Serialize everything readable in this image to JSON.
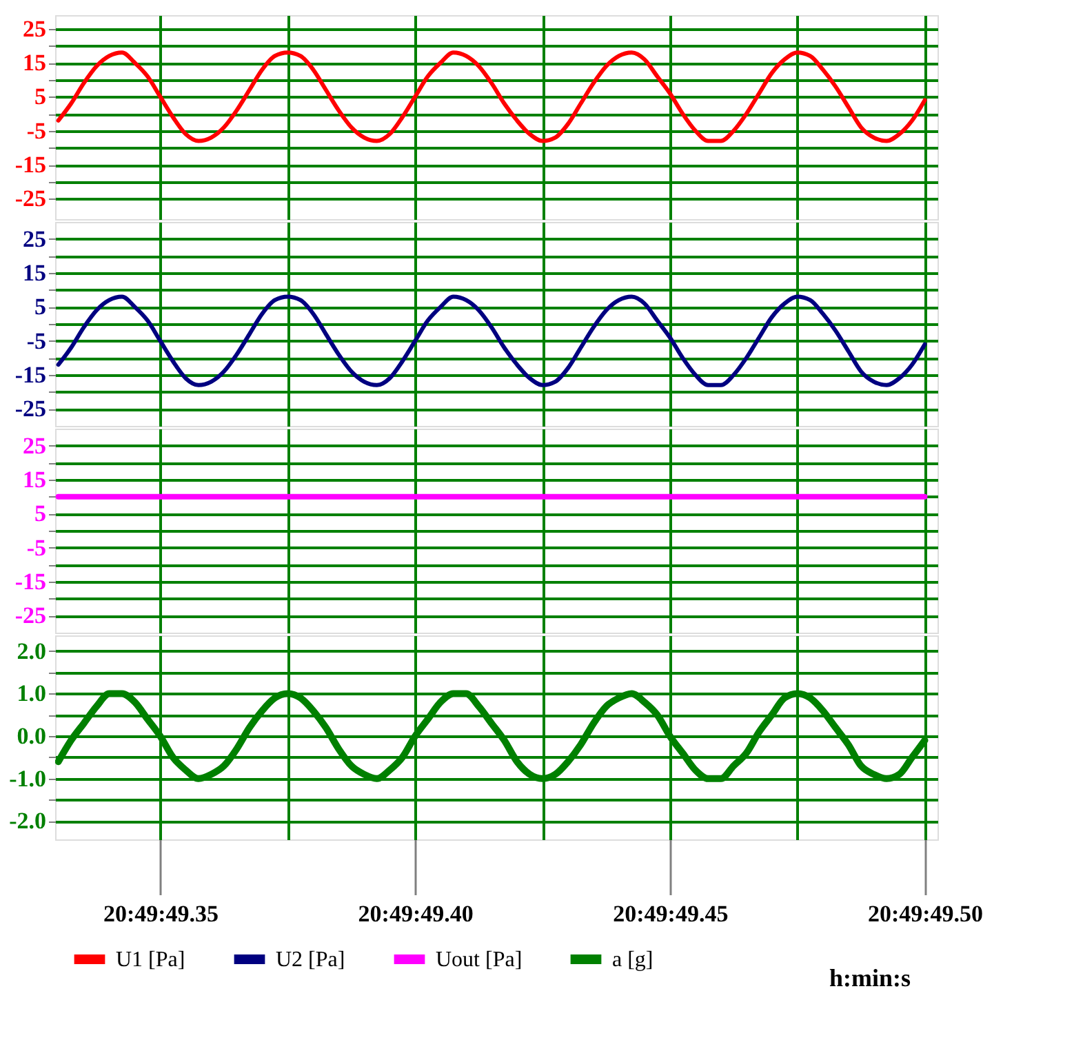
{
  "chart_data": [
    {
      "type": "line",
      "categories": [
        null,
        null,
        null,
        null,
        null,
        null,
        null,
        null,
        "20:49:49.35",
        null,
        null,
        null,
        null,
        null,
        null,
        null,
        null,
        null,
        null,
        null,
        null,
        null,
        null,
        null,
        null,
        null,
        null,
        null,
        "20:49:49.40",
        null,
        null,
        null,
        null,
        null,
        null,
        null,
        null,
        null,
        null,
        null,
        null,
        null,
        null,
        null,
        null,
        null,
        null,
        null,
        "20:49:49.45",
        null,
        null,
        null,
        null,
        null,
        null,
        null,
        null,
        null,
        null,
        null,
        null,
        null,
        null,
        null,
        null,
        null,
        null,
        null,
        "20:49:49.50"
      ],
      "series": [
        {
          "name": "U1 [Pa]",
          "color": "#ff0000",
          "values": [
            -2,
            3,
            9,
            14,
            17,
            18,
            15,
            11,
            5,
            -1,
            -6,
            -8,
            -7,
            -4,
            1,
            7,
            13,
            17,
            18,
            17,
            13,
            7,
            1,
            -4,
            -7,
            -8,
            -6,
            -1,
            5,
            11,
            15,
            18,
            17,
            14,
            9,
            3,
            -2,
            -6,
            -8,
            -7,
            -3,
            3,
            9,
            14,
            17,
            18,
            16,
            11,
            6,
            0,
            -5,
            -8,
            -8,
            -5,
            0,
            6,
            12,
            16,
            18,
            17,
            13,
            8,
            2,
            -4,
            -7,
            -8,
            -6,
            -2,
            4
          ]
        }
      ],
      "ylim": [
        -31,
        29
      ],
      "yticks": [
        25,
        {
          "value": 20,
          "label": null
        },
        15,
        {
          "value": 10,
          "label": null
        },
        5,
        {
          "value": 0,
          "label": null
        },
        -5,
        {
          "value": -10,
          "label": null
        },
        -15,
        {
          "value": -20,
          "label": null
        },
        -25
      ],
      "grid": true,
      "legend": "bottom",
      "tick_labels": "y"
    },
    {
      "type": "line",
      "categories": [
        null,
        null,
        null,
        null,
        null,
        null,
        null,
        null,
        "20:49:49.35",
        null,
        null,
        null,
        null,
        null,
        null,
        null,
        null,
        null,
        null,
        null,
        null,
        null,
        null,
        null,
        null,
        null,
        null,
        null,
        "20:49:49.40",
        null,
        null,
        null,
        null,
        null,
        null,
        null,
        null,
        null,
        null,
        null,
        null,
        null,
        null,
        null,
        null,
        null,
        null,
        null,
        "20:49:49.45",
        null,
        null,
        null,
        null,
        null,
        null,
        null,
        null,
        null,
        null,
        null,
        null,
        null,
        null,
        null,
        null,
        null,
        null,
        null,
        "20:49:49.50"
      ],
      "series": [
        {
          "name": "U2 [Pa]",
          "color": "#000080",
          "values": [
            -12,
            -7,
            -1,
            4,
            7,
            8,
            5,
            1,
            -5,
            -11,
            -16,
            -18,
            -17,
            -14,
            -9,
            -3,
            3,
            7,
            8,
            7,
            3,
            -3,
            -9,
            -14,
            -17,
            -18,
            -16,
            -11,
            -5,
            1,
            5,
            8,
            7,
            4,
            -1,
            -7,
            -12,
            -16,
            -18,
            -17,
            -13,
            -7,
            -1,
            4,
            7,
            8,
            6,
            1,
            -4,
            -10,
            -15,
            -18,
            -18,
            -15,
            -10,
            -4,
            2,
            6,
            8,
            7,
            3,
            -2,
            -8,
            -14,
            -17,
            -18,
            -16,
            -12,
            -6
          ]
        }
      ],
      "ylim": [
        -30,
        30
      ],
      "yticks": [
        25,
        {
          "value": 20,
          "label": null
        },
        15,
        {
          "value": 10,
          "label": null
        },
        5,
        {
          "value": 0,
          "label": null
        },
        -5,
        {
          "value": -10,
          "label": null
        },
        -15,
        {
          "value": -20,
          "label": null
        },
        -25
      ],
      "grid": true,
      "legend": "bottom",
      "tick_labels": "y"
    },
    {
      "type": "line",
      "categories": [
        null,
        null,
        null,
        null,
        null,
        null,
        null,
        null,
        "20:49:49.35",
        null,
        null,
        null,
        null,
        null,
        null,
        null,
        null,
        null,
        null,
        null,
        null,
        null,
        null,
        null,
        null,
        null,
        null,
        null,
        "20:49:49.40",
        null,
        null,
        null,
        null,
        null,
        null,
        null,
        null,
        null,
        null,
        null,
        null,
        null,
        null,
        null,
        null,
        null,
        null,
        null,
        "20:49:49.45",
        null,
        null,
        null,
        null,
        null,
        null,
        null,
        null,
        null,
        null,
        null,
        null,
        null,
        null,
        null,
        null,
        null,
        null,
        null,
        "20:49:49.50"
      ],
      "series": [
        {
          "name": "Uout [Pa]",
          "color": "#ff00ff",
          "values": [
            10,
            10,
            10,
            10,
            10,
            10,
            10,
            10,
            10,
            10,
            10,
            10,
            10,
            10,
            10,
            10,
            10,
            10,
            10,
            10,
            10,
            10,
            10,
            10,
            10,
            10,
            10,
            10,
            10,
            10,
            10,
            10,
            10,
            10,
            10,
            10,
            10,
            10,
            10,
            10,
            10,
            10,
            10,
            10,
            10,
            10,
            10,
            10,
            10,
            10,
            10,
            10,
            10,
            10,
            10,
            10,
            10,
            10,
            10,
            10,
            10,
            10,
            10,
            10,
            10,
            10,
            10,
            10,
            10
          ]
        }
      ],
      "ylim": [
        -30,
        30
      ],
      "yticks": [
        25,
        {
          "value": 20,
          "label": null
        },
        15,
        {
          "value": 10,
          "label": null
        },
        5,
        {
          "value": 0,
          "label": null
        },
        -5,
        {
          "value": -10,
          "label": null
        },
        -15,
        {
          "value": -20,
          "label": null
        },
        -25
      ],
      "grid": true,
      "legend": "bottom",
      "tick_labels": "y"
    },
    {
      "type": "line",
      "xlabel": "h:min:s",
      "categories": [
        null,
        null,
        null,
        null,
        null,
        null,
        null,
        null,
        "20:49:49.35",
        null,
        null,
        null,
        null,
        null,
        null,
        null,
        null,
        null,
        null,
        null,
        null,
        null,
        null,
        null,
        null,
        null,
        null,
        null,
        "20:49:49.40",
        null,
        null,
        null,
        null,
        null,
        null,
        null,
        null,
        null,
        null,
        null,
        null,
        null,
        null,
        null,
        null,
        null,
        null,
        null,
        "20:49:49.45",
        null,
        null,
        null,
        null,
        null,
        null,
        null,
        null,
        null,
        null,
        null,
        null,
        null,
        null,
        null,
        null,
        null,
        null,
        null,
        "20:49:49.50"
      ],
      "series": [
        {
          "name": "a [g]",
          "color": "#008000",
          "values": [
            -0.6,
            -0.1,
            0.3,
            0.7,
            1.0,
            1.0,
            0.8,
            0.4,
            0.0,
            -0.5,
            -0.8,
            -1.0,
            -0.9,
            -0.7,
            -0.3,
            0.2,
            0.6,
            0.9,
            1.0,
            0.9,
            0.6,
            0.2,
            -0.3,
            -0.7,
            -0.9,
            -1.0,
            -0.8,
            -0.5,
            0.0,
            0.4,
            0.8,
            1.0,
            1.0,
            0.7,
            0.3,
            -0.1,
            -0.6,
            -0.9,
            -1.0,
            -0.9,
            -0.6,
            -0.2,
            0.3,
            0.7,
            0.9,
            1.0,
            0.8,
            0.5,
            0.0,
            -0.4,
            -0.8,
            -1.0,
            -1.0,
            -0.7,
            -0.4,
            0.1,
            0.5,
            0.9,
            1.0,
            0.9,
            0.6,
            0.2,
            -0.2,
            -0.7,
            -0.9,
            -1.0,
            -0.9,
            -0.5,
            -0.1
          ]
        }
      ],
      "ylim": [
        -2.43,
        2.37
      ],
      "yticks": [
        {
          "value": 2,
          "label": "2.0"
        },
        {
          "value": 1.5,
          "label": null
        },
        {
          "value": 1,
          "label": "1.0"
        },
        {
          "value": 0.5,
          "label": null
        },
        {
          "value": 0,
          "label": "0.0"
        },
        {
          "value": -0.5,
          "label": null
        },
        {
          "value": -1,
          "label": "-1.0"
        },
        {
          "value": -1.5,
          "label": null
        },
        {
          "value": -2,
          "label": "-2.0"
        }
      ],
      "grid": true,
      "legend": "bottom"
    }
  ]
}
